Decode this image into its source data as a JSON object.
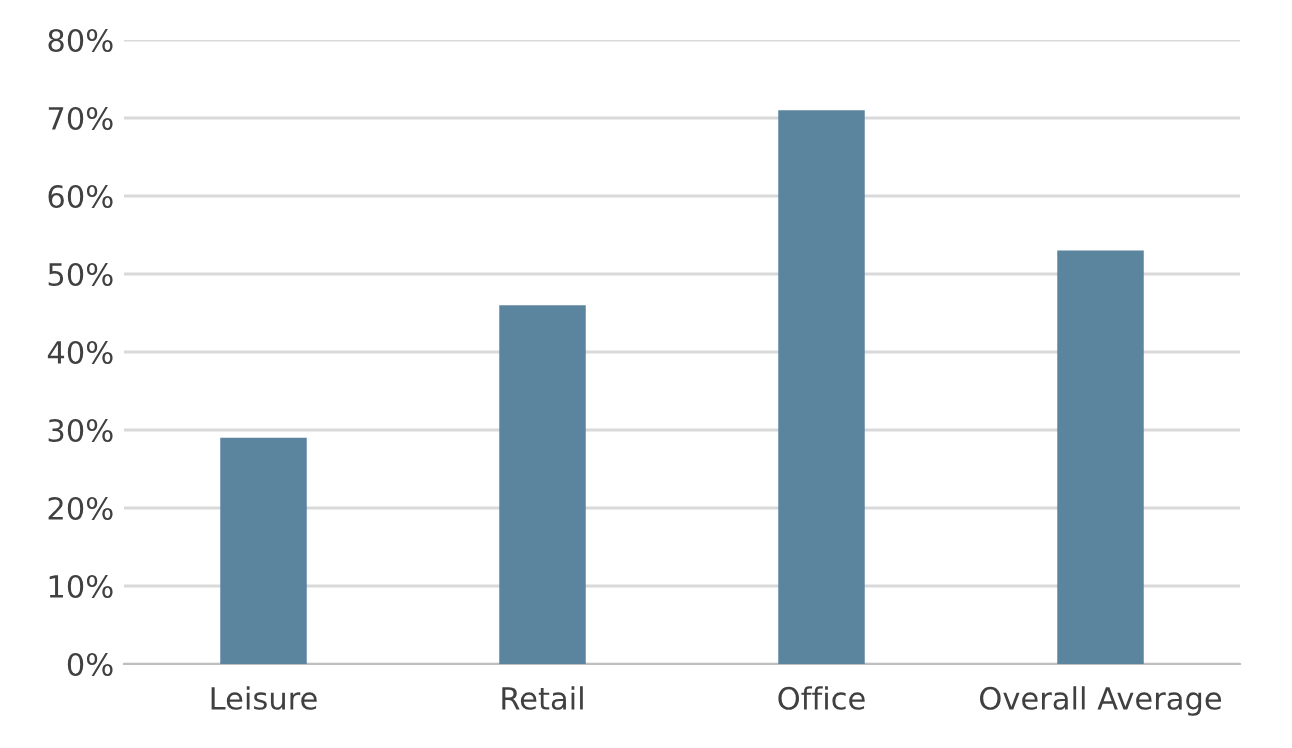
{
  "chart_data": {
    "type": "bar",
    "categories": [
      "Leisure",
      "Retail",
      "Office",
      "Overall Average"
    ],
    "values": [
      29,
      46,
      71,
      53
    ],
    "color": "#5b849e",
    "ylim": [
      0,
      80
    ],
    "yticks": [
      {
        "value": 0,
        "label": "0%"
      },
      {
        "value": 10,
        "label": "10%"
      },
      {
        "value": 20,
        "label": "20%"
      },
      {
        "value": 30,
        "label": "30%"
      },
      {
        "value": 40,
        "label": "40%"
      },
      {
        "value": 50,
        "label": "50%"
      },
      {
        "value": 60,
        "label": "60%"
      },
      {
        "value": 70,
        "label": "70%"
      },
      {
        "value": 80,
        "label": "80%"
      }
    ],
    "grid": "y"
  }
}
